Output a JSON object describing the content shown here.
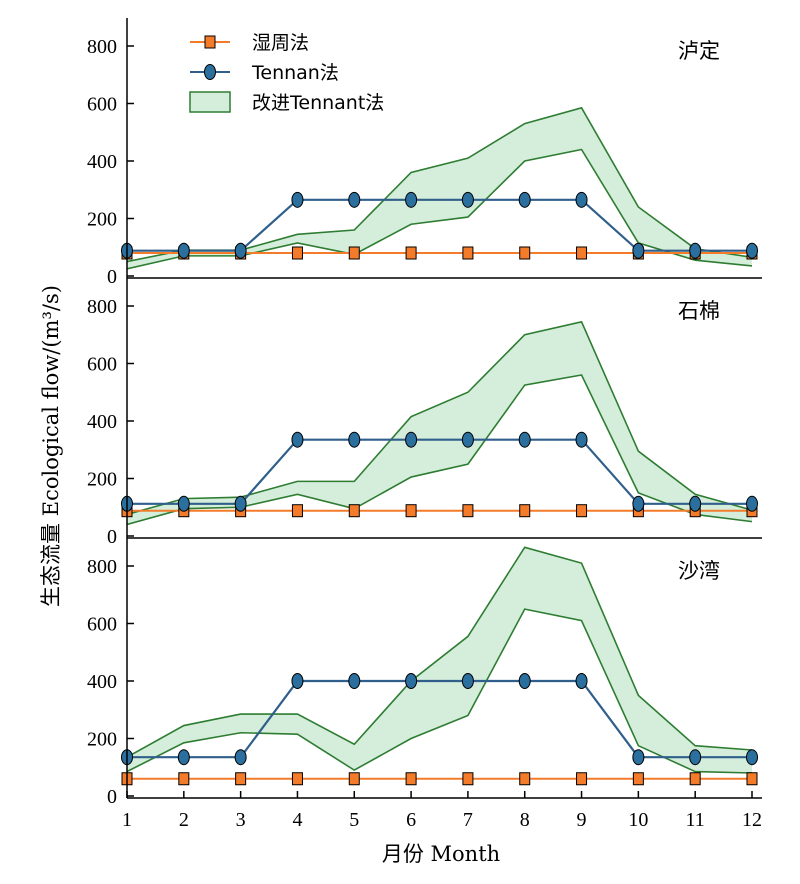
{
  "chart_data": {
    "type": "line",
    "xlabel": "月份 Month",
    "ylabel": "生态流量 Ecological flow/(m³/s)",
    "x": [
      1,
      2,
      3,
      4,
      5,
      6,
      7,
      8,
      9,
      10,
      11,
      12
    ],
    "ylim": [
      0,
      900
    ],
    "yticks": [
      0,
      200,
      400,
      600,
      800
    ],
    "grid": false,
    "legend": {
      "placement": "top-left",
      "entries": [
        "湿周法",
        "Tennan法",
        "改进Tennant法"
      ]
    },
    "colors": {
      "wetted_perimeter": "#f47b2a",
      "tennant": "#2f5f8a",
      "tennant_marker": "#2a6f9e",
      "band_fill": "#d5eedc",
      "band_edge": "#2e7d32"
    },
    "panels": [
      {
        "station": "泸定",
        "wetted_perimeter": [
          80,
          80,
          80,
          80,
          80,
          80,
          80,
          80,
          80,
          80,
          80,
          80
        ],
        "tennant": [
          88,
          88,
          88,
          265,
          265,
          265,
          265,
          265,
          265,
          88,
          88,
          88
        ],
        "improved_upper": [
          50,
          90,
          90,
          145,
          160,
          360,
          410,
          530,
          585,
          240,
          95,
          65
        ],
        "improved_lower": [
          25,
          70,
          70,
          115,
          75,
          180,
          205,
          400,
          440,
          115,
          55,
          35
        ]
      },
      {
        "station": "石棉",
        "wetted_perimeter": [
          88,
          88,
          88,
          88,
          88,
          88,
          88,
          88,
          88,
          88,
          88,
          88
        ],
        "tennant": [
          112,
          112,
          112,
          335,
          335,
          335,
          335,
          335,
          335,
          112,
          112,
          112
        ],
        "improved_upper": [
          75,
          130,
          135,
          190,
          190,
          415,
          500,
          700,
          745,
          295,
          145,
          90
        ],
        "improved_lower": [
          40,
          95,
          100,
          145,
          95,
          205,
          250,
          525,
          560,
          150,
          75,
          50
        ]
      },
      {
        "station": "沙湾",
        "wetted_perimeter": [
          60,
          60,
          60,
          60,
          60,
          60,
          60,
          60,
          60,
          60,
          60,
          60
        ],
        "tennant": [
          135,
          135,
          135,
          400,
          400,
          400,
          400,
          400,
          400,
          135,
          135,
          135
        ],
        "improved_upper": [
          135,
          245,
          285,
          285,
          180,
          400,
          555,
          865,
          810,
          350,
          175,
          160
        ],
        "improved_lower": [
          85,
          185,
          220,
          215,
          90,
          200,
          280,
          650,
          610,
          175,
          85,
          80
        ]
      }
    ]
  }
}
